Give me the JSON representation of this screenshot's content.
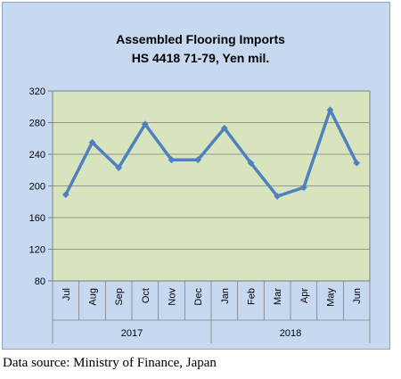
{
  "chart_data": {
    "type": "line",
    "title": "Assembled Flooring Imports",
    "subtitle": "HS 4418 71-79, Yen mil.",
    "categories": [
      "Jul",
      "Aug",
      "Sep",
      "Oct",
      "Nov",
      "Dec",
      "Jan",
      "Feb",
      "Mar",
      "Apr",
      "May",
      "Jun"
    ],
    "groups": [
      {
        "label": "2017",
        "count": 6
      },
      {
        "label": "2018",
        "count": 6
      }
    ],
    "series": [
      {
        "values": [
          189,
          255,
          223,
          278,
          233,
          233,
          273,
          229,
          187,
          198,
          296,
          229
        ]
      }
    ],
    "ylim": [
      80,
      320
    ],
    "yticks": [
      80,
      120,
      160,
      200,
      240,
      280,
      320
    ],
    "grid": true,
    "colors": {
      "plot_bg": "#d7e4bd",
      "chart_bg": "#c6d9f1",
      "line": "#4f81bd",
      "grid": "#7f7f7f"
    }
  },
  "source": "Data source: Ministry of Finance, Japan"
}
